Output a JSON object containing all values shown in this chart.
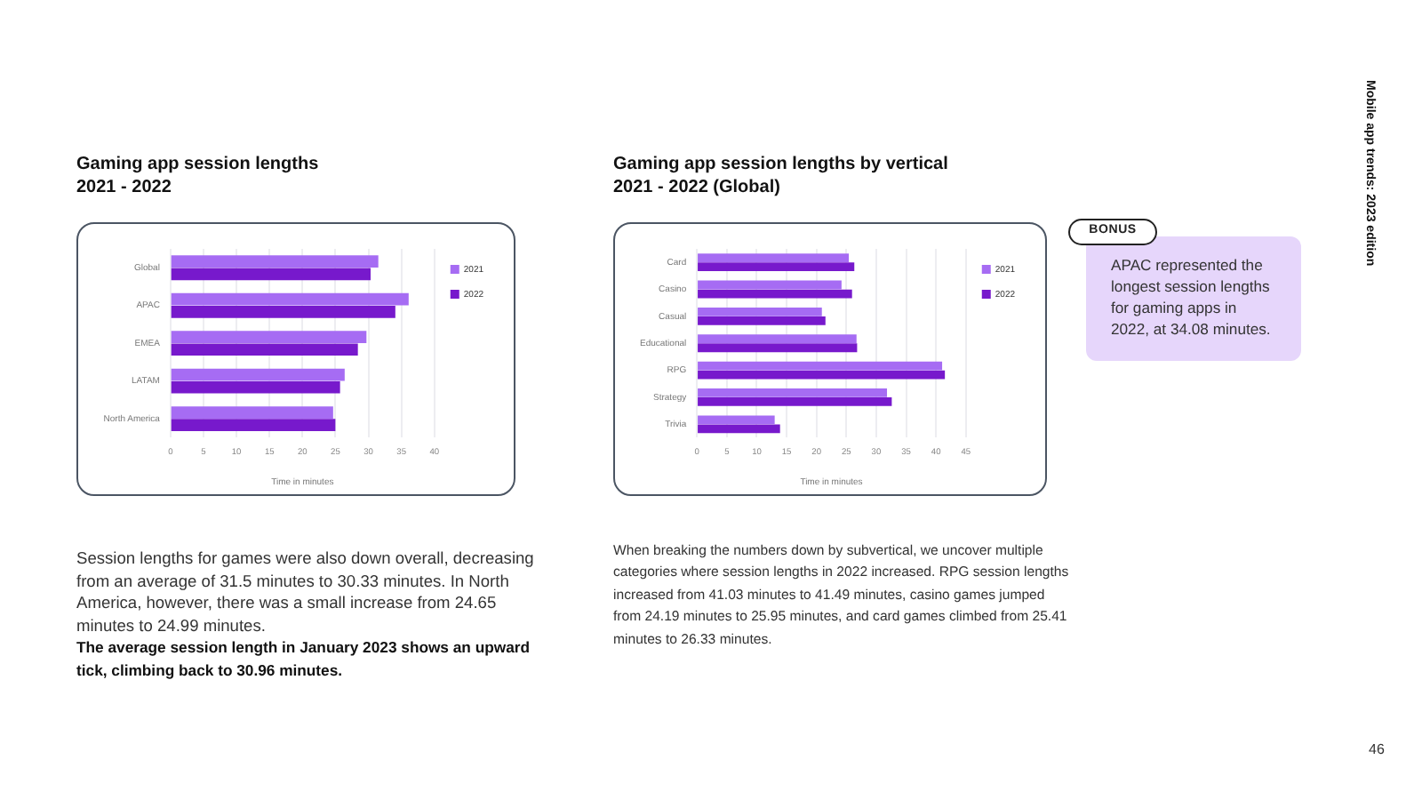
{
  "chart_data": [
    {
      "type": "bar",
      "orientation": "horizontal",
      "title": "Gaming app session lengths",
      "subtitle": "2021 - 2022",
      "xlabel": "Time in minutes",
      "categories": [
        "Global",
        "APAC",
        "EMEA",
        "LATAM",
        "North America"
      ],
      "series": [
        {
          "name": "2021",
          "color": "#a66cf3",
          "values": [
            31.5,
            36.1,
            29.7,
            26.4,
            24.65
          ]
        },
        {
          "name": "2022",
          "color": "#7719cc",
          "values": [
            30.33,
            34.08,
            28.4,
            25.7,
            24.99
          ]
        }
      ],
      "xlim": [
        0,
        40
      ],
      "xticks": [
        0,
        5,
        10,
        15,
        20,
        25,
        30,
        35,
        40
      ],
      "grid": "x",
      "legend": "top right",
      "annotations": [
        "Session lengths for games were also down overall, decreasing from an average of 31.5 minutes to 30.33 minutes. In North America, however, there was a small increase from 24.65 minutes to 24.99 minutes.",
        "The average session length in January 2023 shows an upward tick, climbing back to 30.96 minutes."
      ]
    },
    {
      "type": "bar",
      "orientation": "horizontal",
      "title": "Gaming app session lengths by vertical",
      "subtitle": "2021 - 2022 (Global)",
      "xlabel": "Time in minutes",
      "categories": [
        "Card",
        "Casino",
        "Casual",
        "Educational",
        "RPG",
        "Strategy",
        "Trivia"
      ],
      "series": [
        {
          "name": "2021",
          "color": "#a66cf3",
          "values": [
            25.41,
            24.19,
            20.9,
            26.7,
            41.03,
            31.8,
            13.0
          ]
        },
        {
          "name": "2022",
          "color": "#7719cc",
          "values": [
            26.33,
            25.95,
            21.5,
            26.8,
            41.49,
            32.6,
            13.9
          ]
        }
      ],
      "xlim": [
        0,
        45
      ],
      "xticks": [
        0,
        5,
        10,
        15,
        20,
        25,
        30,
        35,
        40,
        45
      ],
      "grid": "x",
      "legend": "top right",
      "annotations": [
        "When breaking the numbers down by subvertical, we uncover multiple categories where session lengths in 2022 increased. RPG session lengths increased from 41.03 minutes to 41.49 minutes, casino games jumped from 24.19 minutes to 25.95 minutes, and card games climbed from 25.41 minutes to 26.33 minutes."
      ]
    },
    {
      "type": "other",
      "title": "BONUS",
      "annotations": [
        "APAC represented the longest session lengths for gaming apps in 2022, at 34.08 minutes."
      ]
    },
    {
      "type": "other",
      "title": "Mobile app trends: 2023 edition",
      "annotations": [
        "46"
      ]
    }
  ]
}
